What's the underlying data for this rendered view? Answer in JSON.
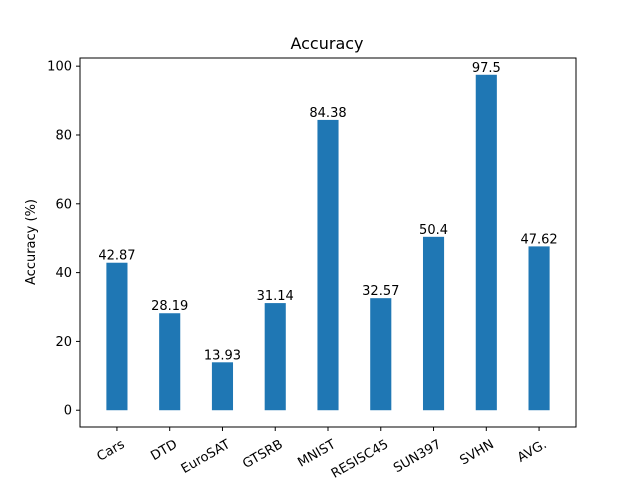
{
  "chart_data": {
    "type": "bar",
    "title": "Accuracy",
    "xlabel": "",
    "ylabel": "Accuracy (%)",
    "categories": [
      "Cars",
      "DTD",
      "EuroSAT",
      "GTSRB",
      "MNIST",
      "RESISC45",
      "SUN397",
      "SVHN",
      "AVG."
    ],
    "values": [
      42.87,
      28.19,
      13.93,
      31.14,
      84.38,
      32.57,
      50.4,
      97.5,
      47.62
    ],
    "data_labels": [
      "42.87",
      "28.19",
      "13.93",
      "31.14",
      "84.38",
      "32.57",
      "50.4",
      "97.5",
      "47.62"
    ],
    "ylim": [
      -4.875,
      102.375
    ],
    "yticks": [
      0,
      20,
      40,
      60,
      80,
      100
    ],
    "ytick_labels": [
      "0",
      "20",
      "40",
      "60",
      "80",
      "100"
    ],
    "xtick_rotation": "30 degrees",
    "bar_color": "#1f77b4",
    "grid": false,
    "legend": "none"
  }
}
